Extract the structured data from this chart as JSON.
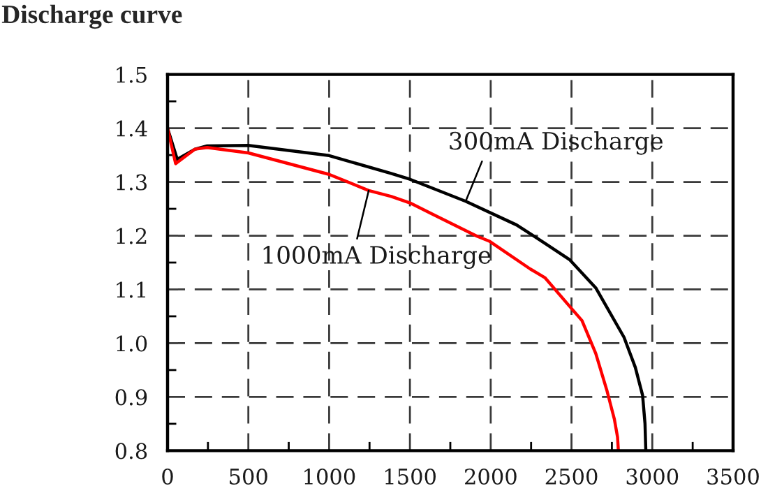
{
  "chart_data": {
    "type": "line",
    "title": "Discharge curve",
    "xlim": [
      0,
      3500
    ],
    "ylim": [
      0.8,
      1.5
    ],
    "xticks": [
      0,
      {
        "value": 250,
        "label": null
      },
      500,
      {
        "value": 750,
        "label": null
      },
      1000,
      {
        "value": 1250,
        "label": null
      },
      1500,
      {
        "value": 1750,
        "label": null
      },
      2000,
      {
        "value": 2250,
        "label": null
      },
      2500,
      {
        "value": 2750,
        "label": null
      },
      3000,
      {
        "value": 3250,
        "label": null
      },
      3500
    ],
    "yticks": [
      0.8,
      {
        "value": 0.85,
        "label": null
      },
      0.9,
      {
        "value": 0.95,
        "label": null
      },
      {
        "value": 1.0,
        "label": "1.0"
      },
      {
        "value": 1.05,
        "label": null
      },
      1.1,
      {
        "value": 1.15,
        "label": null
      },
      1.2,
      {
        "value": 1.25,
        "label": null
      },
      1.3,
      {
        "value": 1.35,
        "label": null
      },
      1.4,
      {
        "value": 1.45,
        "label": null
      },
      1.5
    ],
    "grid": true,
    "series": [
      {
        "color": "#000000",
        "x": [
          0,
          60,
          170,
          245,
          500,
          1000,
          1380,
          1500,
          1845,
          2160,
          2335,
          2490,
          2650,
          2825,
          2895,
          2940,
          2955,
          2960
        ],
        "values": [
          1.4,
          1.342,
          1.361,
          1.367,
          1.368,
          1.349,
          1.316,
          1.305,
          1.264,
          1.22,
          1.186,
          1.155,
          1.103,
          1.011,
          0.955,
          0.903,
          0.85,
          0.8
        ]
      },
      {
        "color": "#ff0000",
        "x": [
          0,
          50,
          170,
          245,
          500,
          1000,
          1245,
          1385,
          1500,
          1640,
          1915,
          1990,
          2245,
          2335,
          2490,
          2565,
          2650,
          2720,
          2765,
          2785,
          2790
        ],
        "values": [
          1.4,
          1.334,
          1.361,
          1.364,
          1.354,
          1.314,
          1.284,
          1.273,
          1.261,
          1.24,
          1.199,
          1.19,
          1.138,
          1.122,
          1.068,
          1.042,
          0.981,
          0.911,
          0.859,
          0.825,
          0.8
        ]
      }
    ],
    "annotations": [
      {
        "text": "300mA Discharge",
        "x": 1845,
        "y": 1.264
      },
      {
        "text": "1000mA Discharge",
        "x": 1245,
        "y": 1.284
      }
    ]
  }
}
